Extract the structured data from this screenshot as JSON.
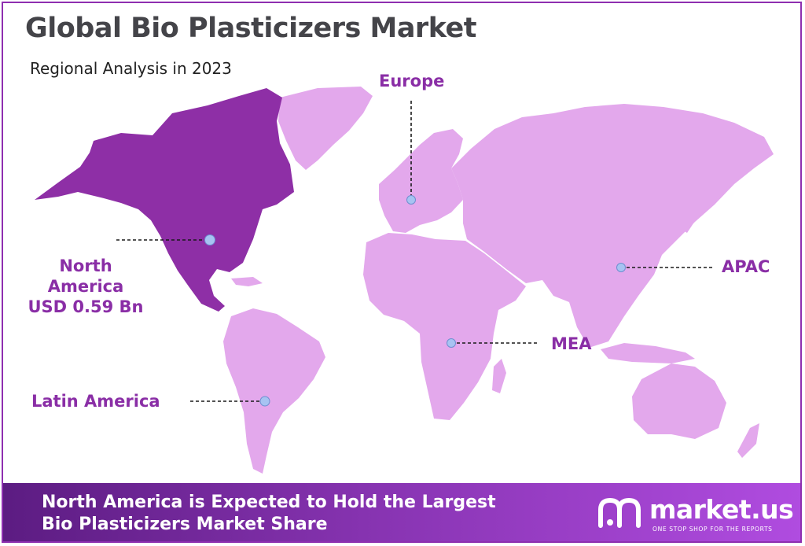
{
  "header": {
    "title": "Global Bio Plasticizers Market",
    "subtitle": "Regional Analysis in 2023"
  },
  "regions": {
    "north_america": {
      "name_line1": "North",
      "name_line2": "America",
      "value": "USD 0.59 Bn"
    },
    "europe": {
      "name": "Europe"
    },
    "apac": {
      "name": "APAC"
    },
    "mea": {
      "name": "MEA"
    },
    "latin_america": {
      "name": "Latin America"
    }
  },
  "footer": {
    "line1": "North America is Expected to Hold the Largest",
    "line2": "Bio Plasticizers Market Share"
  },
  "brand": {
    "name": "market.us",
    "tagline": "ONE STOP SHOP FOR THE REPORTS"
  },
  "colors": {
    "highlight_region": "#8e2fa6",
    "other_regions": "#e3a8ec",
    "label": "#8a2ea6",
    "title": "#444449",
    "marker": "#a7c3f2",
    "footer_start": "#5c1c82",
    "footer_end": "#b04ce0"
  }
}
